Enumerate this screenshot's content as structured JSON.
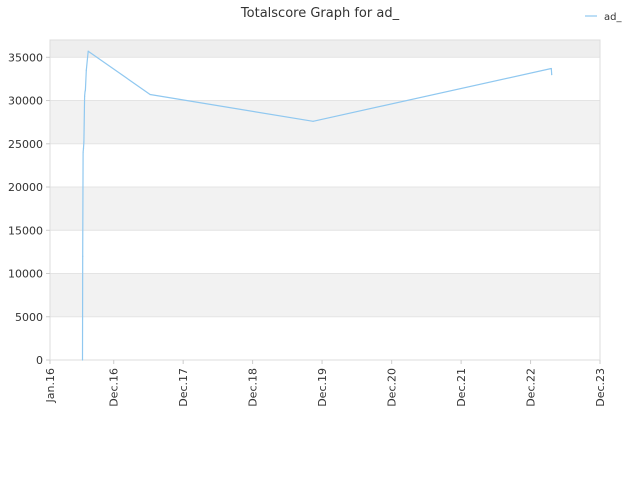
{
  "chart_data": {
    "type": "line",
    "title": "Totalscore Graph for ad_",
    "xlabel": "",
    "ylabel": "",
    "ylim": [
      0,
      37000
    ],
    "xlim": [
      "2016-01-01",
      "2023-12-01"
    ],
    "yticks": [
      0,
      5000,
      10000,
      15000,
      20000,
      25000,
      30000,
      35000
    ],
    "ytick_labels": [
      "0",
      "5000",
      "10000",
      "15000",
      "20000",
      "25000",
      "30000",
      "35000"
    ],
    "xticks": [
      "2016-01-01",
      "2016-12-01",
      "2017-12-01",
      "2018-12-01",
      "2019-12-01",
      "2020-12-01",
      "2021-12-01",
      "2022-12-01",
      "2023-12-01"
    ],
    "xtick_labels": [
      "Jan.16",
      "Dec.16",
      "Dec.17",
      "Dec.18",
      "Dec.19",
      "Dec.20",
      "Dec.21",
      "Dec.22",
      "Dec.23"
    ],
    "grid": true,
    "legend": "top-right",
    "series": [
      {
        "name": "ad_",
        "color": "#90c8f0",
        "x": [
          "2016-06-20",
          "2016-06-21",
          "2016-06-23",
          "2016-06-25",
          "2016-06-27",
          "2016-07-01",
          "2016-07-03",
          "2016-07-05",
          "2016-07-10",
          "2016-07-20",
          "2017-06-10",
          "2019-10-15",
          "2023-03-20",
          "2023-03-22"
        ],
        "values": [
          0,
          12000,
          24000,
          24500,
          25200,
          30500,
          31000,
          31200,
          33500,
          35700,
          30700,
          27600,
          33700,
          33000
        ]
      }
    ]
  }
}
